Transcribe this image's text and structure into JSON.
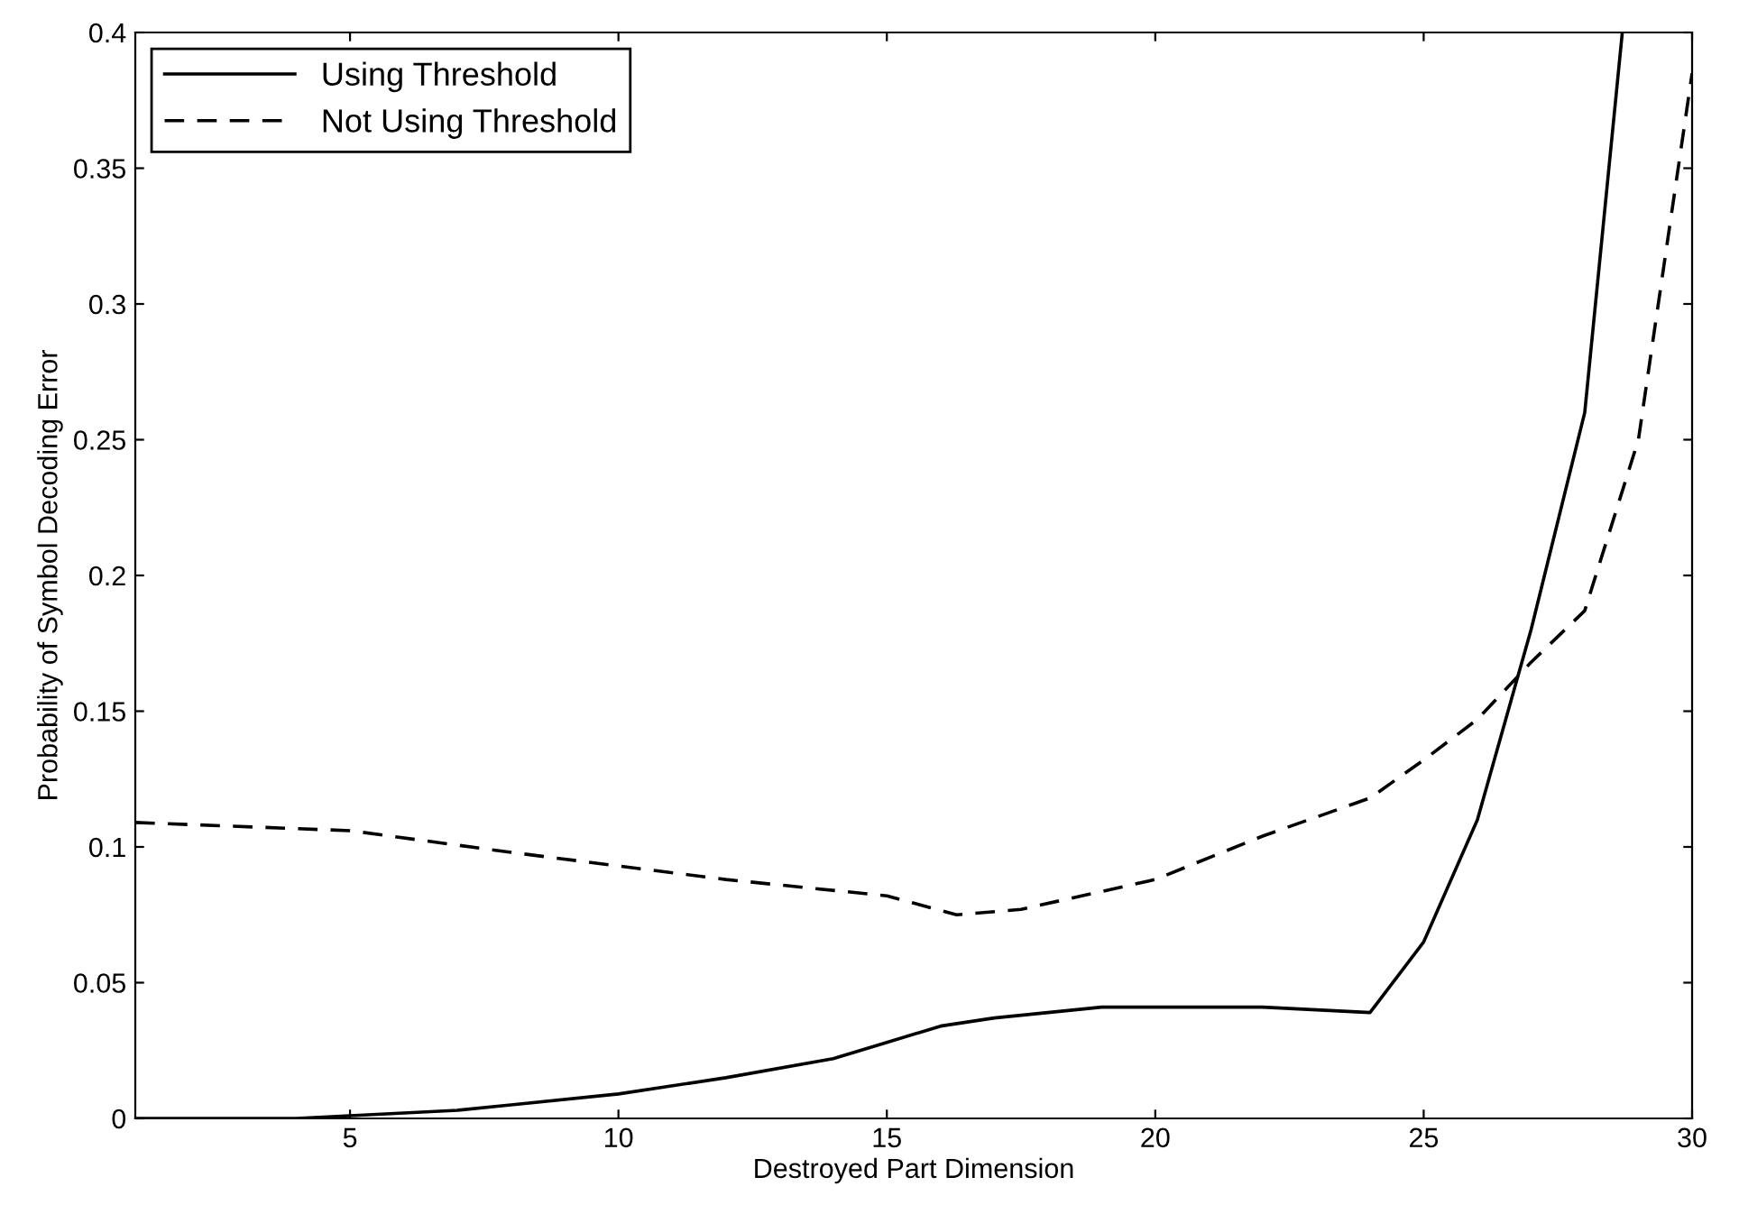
{
  "chart_data": {
    "type": "line",
    "xlabel": "Destroyed Part Dimension",
    "ylabel": "Probability of Symbol Decoding Error",
    "xlim": [
      1,
      30
    ],
    "ylim": [
      0,
      0.4
    ],
    "xticks": [
      5,
      10,
      15,
      20,
      25,
      30
    ],
    "yticks": [
      0,
      0.05,
      0.1,
      0.15,
      0.2,
      0.25,
      0.3,
      0.35,
      0.4
    ],
    "grid": false,
    "legend": "top left",
    "series": [
      {
        "name": "Using Threshold",
        "color": "#000000",
        "line_style": "solid",
        "x": [
          1,
          4,
          5,
          7,
          8,
          10,
          12,
          14,
          15,
          16,
          17,
          19,
          20,
          22,
          24,
          25,
          26,
          27,
          28,
          28.7
        ],
        "values": [
          0,
          0,
          0.001,
          0.003,
          0.005,
          0.009,
          0.015,
          0.022,
          0.028,
          0.034,
          0.037,
          0.041,
          0.041,
          0.041,
          0.039,
          0.065,
          0.11,
          0.18,
          0.26,
          0.4
        ]
      },
      {
        "name": "Not Using Threshold",
        "color": "#000000",
        "line_style": "dashed",
        "x": [
          1,
          5,
          8,
          12,
          15,
          16.3,
          17.5,
          20,
          22,
          24,
          25,
          26,
          27,
          28,
          29,
          30
        ],
        "values": [
          0.109,
          0.106,
          0.098,
          0.088,
          0.082,
          0.075,
          0.077,
          0.088,
          0.104,
          0.118,
          0.132,
          0.147,
          0.168,
          0.187,
          0.25,
          0.385
        ]
      }
    ]
  }
}
